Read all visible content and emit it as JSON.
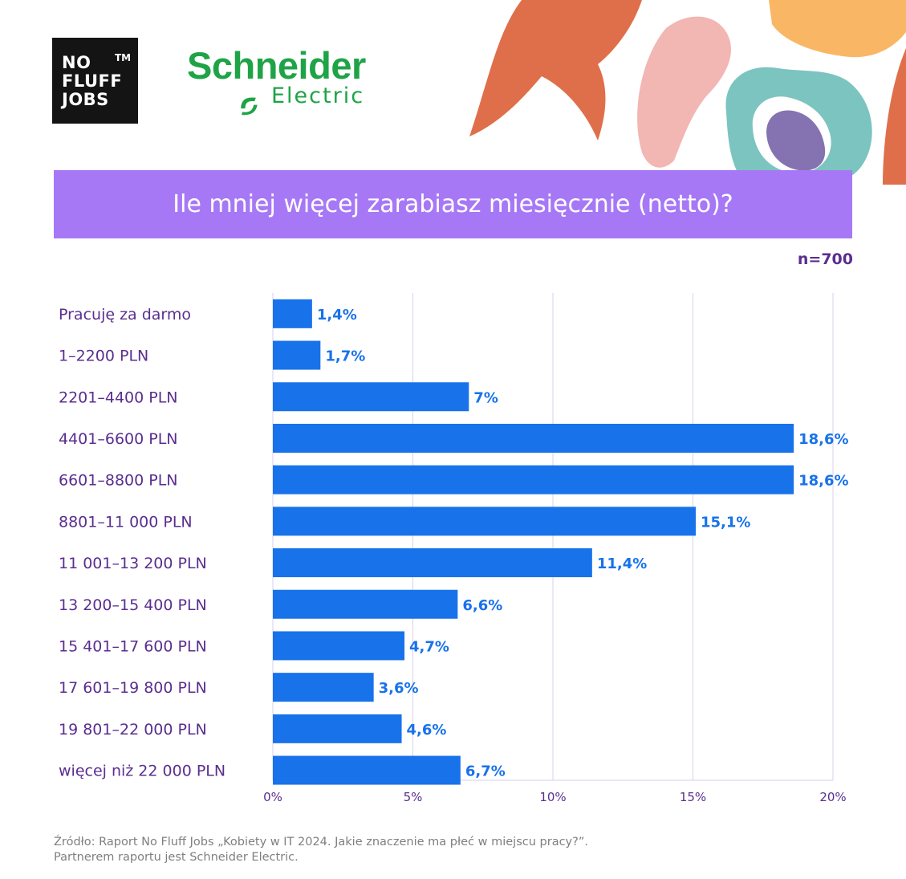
{
  "brand": {
    "nff_lines": [
      "NO",
      "FLUFF",
      "JOBS"
    ],
    "nff_tm": "TM",
    "partner_name": "Schneider",
    "partner_sub": "Electric"
  },
  "colors": {
    "bar": "#1872ea",
    "value_label": "#1872ea",
    "category_label": "#5a2e8f",
    "title_band": "#a778f5",
    "grid": "#d6d2ec"
  },
  "header": {
    "title": "Ile mniej więcej zarabiasz miesięcznie (netto)?",
    "sample": "n=700"
  },
  "chart_data": {
    "type": "bar",
    "orientation": "horizontal",
    "title": "Ile mniej więcej zarabiasz miesięcznie (netto)?",
    "categories": [
      "Pracuję za darmo",
      "1–2200 PLN",
      "2201–4400 PLN",
      "4401–6600 PLN",
      "6601–8800 PLN",
      "8801–11 000 PLN",
      "11 001–13 200 PLN",
      "13 200–15 400 PLN",
      "15 401–17 600 PLN",
      "17 601–19 800 PLN",
      "19 801–22 000 PLN",
      "więcej niż 22 000 PLN"
    ],
    "values": [
      1.4,
      1.7,
      7,
      18.6,
      18.6,
      15.1,
      11.4,
      6.6,
      4.7,
      3.6,
      4.6,
      6.7
    ],
    "value_labels": [
      "1,4%",
      "1,7%",
      "7%",
      "18,6%",
      "18,6%",
      "15,1%",
      "11,4%",
      "6,6%",
      "4,7%",
      "3,6%",
      "4,6%",
      "6,7%"
    ],
    "xlim": [
      0,
      20
    ],
    "xticks": [
      0,
      5,
      10,
      15,
      20
    ],
    "xtick_labels": [
      "0%",
      "5%",
      "10%",
      "15%",
      "20%"
    ],
    "grid": true,
    "legend": "none",
    "xlabel": "",
    "ylabel": ""
  },
  "footer": {
    "source_line1": "Źródło: Raport No Fluff Jobs „Kobiety w IT 2024. Jakie znaczenie ma płeć w miejscu pracy?”.",
    "source_line2": "Partnerem raportu jest Schneider Electric."
  }
}
